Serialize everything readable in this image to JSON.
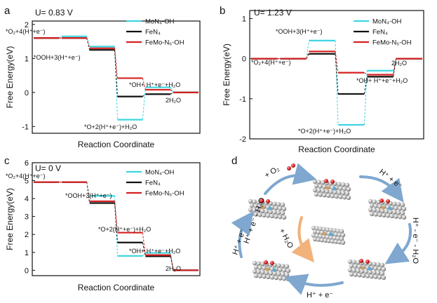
{
  "colors": {
    "mon4": "#3fd6e0",
    "fen4": "#111111",
    "femo": "#d62020",
    "arrow_blue": "#7fa7cf",
    "arrow_orange": "#f2b27c"
  },
  "legend": [
    "MoN₄-OH",
    "FeN₄",
    "FeMo-N₆-OH"
  ],
  "chart_data": [
    {
      "id": "a",
      "panel_label": "a",
      "type": "line",
      "potential_label": "U= 0.83 V",
      "xlabel": "Reaction Coordinate",
      "ylabel": "Free Energy(eV)",
      "ylim": [
        -1.2,
        2.1
      ],
      "yticks": [
        -1,
        0,
        1,
        2
      ],
      "steps": 5,
      "series": [
        {
          "name": "MoN₄-OH",
          "color_key": "mon4",
          "values": [
            1.6,
            1.65,
            1.35,
            -0.8,
            0.15,
            0.0
          ]
        },
        {
          "name": "FeN₄",
          "color_key": "fen4",
          "values": [
            1.6,
            1.6,
            1.25,
            -0.12,
            -0.05,
            0.0
          ]
        },
        {
          "name": "FeMo-N₆-OH",
          "color_key": "femo",
          "values": [
            1.6,
            1.6,
            1.3,
            0.42,
            0.08,
            0.0
          ]
        }
      ],
      "annotations": [
        "*O₂+4(H⁺+e⁻)",
        "*OOH+3(H⁺+e⁻)",
        "*O+2(H⁺+e⁻)+H₂O",
        "*OH+ H⁺+e⁻+H₂O",
        "2H₂O"
      ]
    },
    {
      "id": "b",
      "panel_label": "b",
      "type": "line",
      "potential_label": "U= 1.23 V",
      "xlabel": "Reaction Coordinate",
      "ylabel": "Free Energy(eV)",
      "ylim": [
        -2.0,
        1.2
      ],
      "yticks": [
        -2,
        -1,
        0,
        1
      ],
      "steps": 5,
      "series": [
        {
          "name": "MoN₄-OH",
          "color_key": "mon4",
          "values": [
            0.0,
            0.0,
            0.45,
            -1.65,
            -0.3,
            0.0
          ]
        },
        {
          "name": "FeN₄",
          "color_key": "fen4",
          "values": [
            0.0,
            0.0,
            0.12,
            -0.88,
            -0.45,
            0.0
          ]
        },
        {
          "name": "FeMo-N₆-OH",
          "color_key": "femo",
          "values": [
            0.0,
            0.0,
            0.18,
            -0.35,
            -0.4,
            0.0
          ]
        }
      ],
      "annotations": [
        "*O₂+4(H⁺+e⁻)",
        "*OOH+3(H⁺+e⁻)",
        "*O+2(H⁺+e⁻)+H₂O",
        "*OH+ H⁺+e⁻+H₂O",
        "2H₂O"
      ]
    },
    {
      "id": "c",
      "panel_label": "c",
      "type": "line",
      "potential_label": "U= 0 V",
      "xlabel": "Reaction Coordinate",
      "ylabel": "Free Energy(eV)",
      "ylim": [
        -0.3,
        6.0
      ],
      "yticks": [
        0,
        1,
        2,
        3,
        4,
        5,
        6
      ],
      "steps": 5,
      "series": [
        {
          "name": "MoN₄-OH",
          "color_key": "mon4",
          "values": [
            4.92,
            4.92,
            4.15,
            0.8,
            0.97,
            0.0
          ]
        },
        {
          "name": "FeN₄",
          "color_key": "fen4",
          "values": [
            4.92,
            4.92,
            3.75,
            1.55,
            0.78,
            0.0
          ]
        },
        {
          "name": "FeMo-N₆-OH",
          "color_key": "femo",
          "values": [
            4.92,
            4.92,
            3.85,
            2.1,
            0.85,
            0.0
          ]
        }
      ],
      "annotations": [
        "*O₂+4(H⁺+e⁻)",
        "*OOH+3(H⁺+e⁻)",
        "*O+2(H⁺+e⁻)+H₂O",
        "*OH+ H⁺+e⁻+H₂O",
        "2H₂O"
      ]
    }
  ],
  "panel_d": {
    "panel_label": "d",
    "labels": [
      "+ O₂",
      "H⁺ + e⁻",
      "H⁺ - e⁻ - H₂O",
      "H⁺ + e⁻",
      "H⁺ + e⁻",
      "+ H₂O",
      "H⁺ + e⁻ - H₂O"
    ]
  }
}
